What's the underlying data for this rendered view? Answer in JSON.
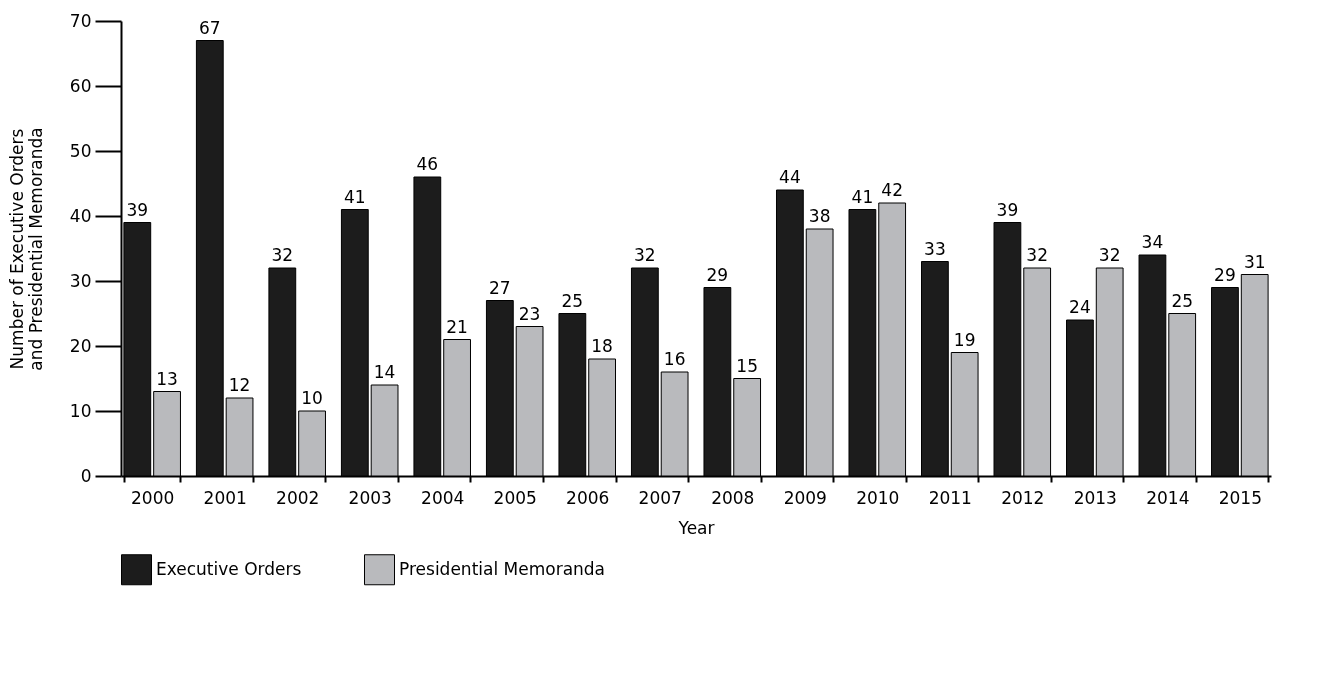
{
  "chart_data": {
    "type": "bar",
    "xlabel": "Year",
    "ylabel": "Number of Executive Orders and Presidential Memoranda",
    "categories": [
      "2000",
      "2001",
      "2002",
      "2003",
      "2004",
      "2005",
      "2006",
      "2007",
      "2008",
      "2009",
      "2010",
      "2011",
      "2012",
      "2013",
      "2014",
      "2015"
    ],
    "series": [
      {
        "name": "Executive Orders",
        "color": "#1c1c1c",
        "values": [
          39,
          67,
          32,
          41,
          46,
          27,
          25,
          32,
          29,
          44,
          41,
          33,
          39,
          24,
          34,
          29
        ]
      },
      {
        "name": "Presidential Memoranda",
        "color": "#b9babd",
        "values": [
          13,
          12,
          10,
          14,
          21,
          23,
          18,
          16,
          15,
          38,
          42,
          19,
          32,
          32,
          25,
          31
        ]
      }
    ],
    "ylim": [
      0,
      70
    ],
    "yticks": [
      0,
      10,
      20,
      30,
      40,
      50,
      60,
      70
    ],
    "data_labels": true,
    "legend": "bottom"
  }
}
